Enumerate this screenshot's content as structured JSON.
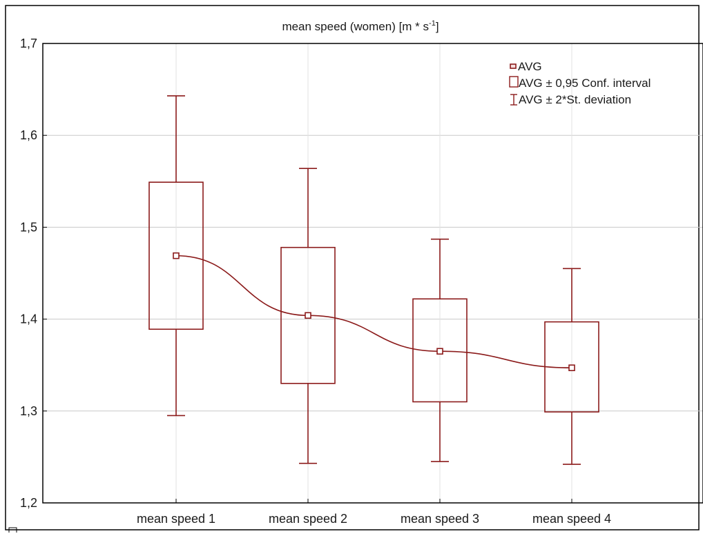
{
  "chart_data": {
    "type": "box",
    "title": "mean speed (women) [m * s",
    "title_superscript": "-1",
    "title_suffix": "]",
    "categories": [
      "mean speed 1",
      "mean speed 2",
      "mean speed 3",
      "mean speed 4"
    ],
    "series": [
      {
        "name": "AVG",
        "values": [
          1.469,
          1.404,
          1.365,
          1.347
        ]
      },
      {
        "name": "AVG ± 0,95 Conf. interval",
        "lower": [
          1.389,
          1.33,
          1.31,
          1.299
        ],
        "upper": [
          1.549,
          1.478,
          1.422,
          1.397
        ]
      },
      {
        "name": "AVG ± 2*St. deviation",
        "lower": [
          1.295,
          1.243,
          1.245,
          1.242
        ],
        "upper": [
          1.643,
          1.564,
          1.487,
          1.455
        ]
      }
    ],
    "ylim": [
      1.2,
      1.7
    ],
    "yticks": [
      1.2,
      1.3,
      1.4,
      1.5,
      1.6,
      1.7
    ],
    "ytick_labels": [
      "1,2",
      "1,3",
      "1,4",
      "1,5",
      "1,6",
      "1,7"
    ],
    "grid": true,
    "legend_position": "top-right",
    "colors": {
      "series": "#8b1a1a",
      "grid": "#c8c8c8",
      "axis": "#000000"
    }
  }
}
